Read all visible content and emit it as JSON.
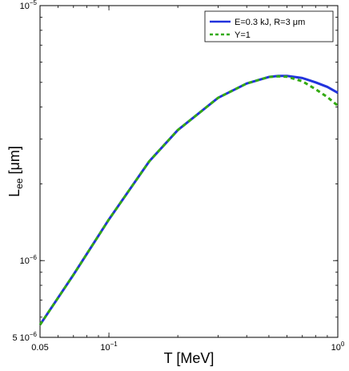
{
  "chart_data": {
    "type": "line",
    "xlabel": "T [MeV]",
    "ylabel": "L",
    "ylabel_sub": "ee",
    "ylabel_unit": " [μm]",
    "xscale": "log",
    "yscale": "log",
    "xlim": [
      0.05,
      1.0
    ],
    "ylim": [
      5e-07,
      1e-05
    ],
    "x_ticks": [
      {
        "value": 0.05,
        "label": "0.05"
      },
      {
        "value": 0.1,
        "label": "10",
        "exp": "−1"
      },
      {
        "value": 1.0,
        "label": "10",
        "exp": "0"
      }
    ],
    "y_ticks": [
      {
        "value": 5e-07,
        "label": "5 10",
        "exp": "−6"
      },
      {
        "value": 1e-06,
        "label": "10",
        "exp": "−6"
      },
      {
        "value": 1e-05,
        "label": "10",
        "exp": "−5"
      }
    ],
    "legend_position": "top-right",
    "grid": false,
    "series": [
      {
        "name": "E=0.3 kJ, R=3 μm",
        "color": "#2233dd",
        "style": "solid",
        "x": [
          0.05,
          0.07,
          0.1,
          0.15,
          0.2,
          0.3,
          0.4,
          0.5,
          0.55,
          0.6,
          0.7,
          0.8,
          0.9,
          1.0
        ],
        "y": [
          5.6e-07,
          8.8e-07,
          1.45e-06,
          2.45e-06,
          3.25e-06,
          4.35e-06,
          4.95e-06,
          5.25e-06,
          5.3e-06,
          5.3e-06,
          5.2e-06,
          5e-06,
          4.8e-06,
          4.55e-06
        ]
      },
      {
        "name": "Υ=1",
        "color": "#33aa11",
        "style": "dashed",
        "x": [
          0.05,
          0.07,
          0.1,
          0.15,
          0.2,
          0.3,
          0.4,
          0.5,
          0.55,
          0.6,
          0.7,
          0.8,
          0.9,
          1.0
        ],
        "y": [
          5.6e-07,
          8.8e-07,
          1.45e-06,
          2.45e-06,
          3.25e-06,
          4.35e-06,
          4.95e-06,
          5.25e-06,
          5.28e-06,
          5.26e-06,
          5.05e-06,
          4.7e-06,
          4.38e-06,
          4.05e-06
        ]
      }
    ]
  }
}
